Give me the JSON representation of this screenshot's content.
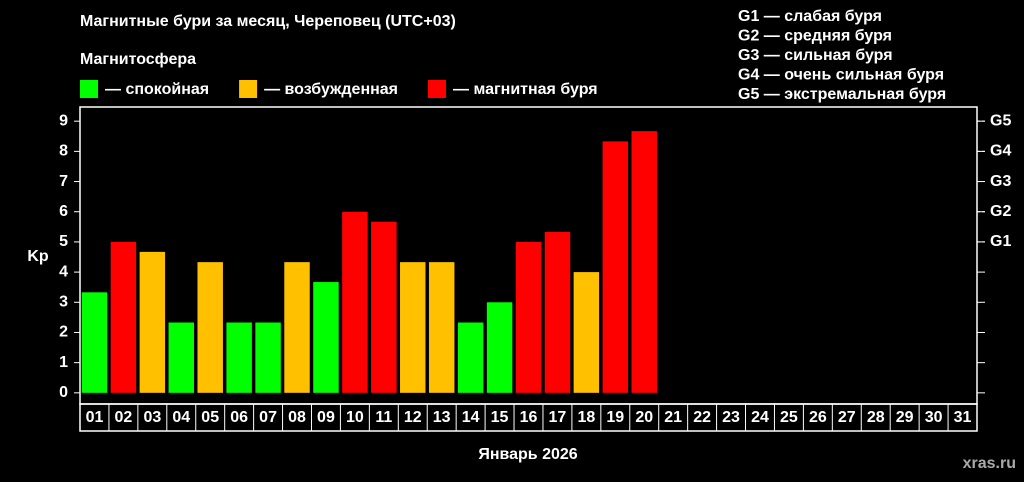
{
  "chart_data": {
    "type": "bar",
    "title": "Магнитные бури за месяц, Череповец (UTC+03)",
    "subtitle": "Магнитосфера",
    "x_label": "Январь 2026",
    "y_label": "Kp",
    "watermark": "xras.ru",
    "storm_scale": [
      "G1 — слабая буря",
      "G2 — средняя буря",
      "G3 — сильная буря",
      "G4 — очень сильная буря",
      "G5 — экстремальная буря"
    ],
    "categories": [
      "01",
      "02",
      "03",
      "04",
      "05",
      "06",
      "07",
      "08",
      "09",
      "10",
      "11",
      "12",
      "13",
      "14",
      "15",
      "16",
      "17",
      "18",
      "19",
      "20",
      "21",
      "22",
      "23",
      "24",
      "25",
      "26",
      "27",
      "28",
      "29",
      "30",
      "31"
    ],
    "series": [
      {
        "name": "— спокойная",
        "color": "#00ff00",
        "values": [
          3.33,
          null,
          null,
          2.33,
          null,
          2.33,
          2.33,
          null,
          3.67,
          null,
          null,
          null,
          null,
          2.33,
          3,
          null,
          null,
          null,
          null,
          null,
          null,
          null,
          null,
          null,
          null,
          null,
          null,
          null,
          null,
          null,
          null
        ]
      },
      {
        "name": "— возбужденная",
        "color": "#ffc000",
        "values": [
          null,
          null,
          4.67,
          null,
          4.33,
          null,
          null,
          4.33,
          null,
          null,
          null,
          4.33,
          4.33,
          null,
          null,
          null,
          null,
          4,
          null,
          null,
          null,
          null,
          null,
          null,
          null,
          null,
          null,
          null,
          null,
          null,
          null
        ]
      },
      {
        "name": "— магнитная буря",
        "color": "#ff0000",
        "values": [
          null,
          5,
          null,
          null,
          null,
          null,
          null,
          null,
          null,
          6,
          5.67,
          null,
          null,
          null,
          null,
          5,
          5.33,
          null,
          8.33,
          8.67,
          null,
          null,
          null,
          null,
          null,
          null,
          null,
          null,
          null,
          null,
          null
        ]
      }
    ],
    "ylim": [
      -0.37,
      9.47
    ],
    "yticks": [
      0,
      1,
      2,
      3,
      4,
      5,
      6,
      7,
      8,
      9
    ],
    "y2ticks": [
      {
        "value": 5,
        "label": "G1"
      },
      {
        "value": 6,
        "label": "G2"
      },
      {
        "value": 7,
        "label": "G3"
      },
      {
        "value": 8,
        "label": "G4"
      },
      {
        "value": 9,
        "label": "G5"
      }
    ]
  }
}
